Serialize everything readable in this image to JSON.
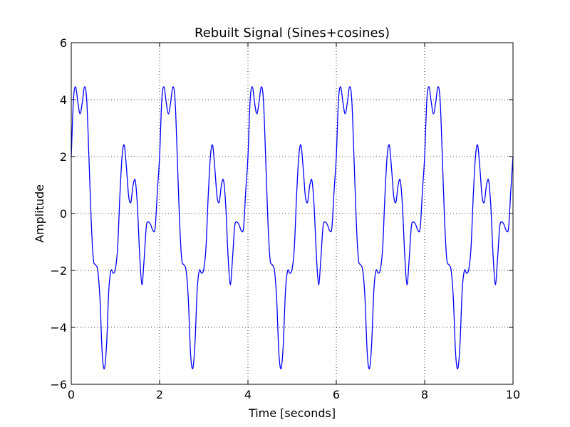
{
  "chart_data": {
    "type": "line",
    "title": "Rebuilt Signal (Sines+cosines)",
    "xlabel": "Time [seconds]",
    "ylabel": "Amplitude",
    "xlim": [
      0,
      10
    ],
    "ylim": [
      -6,
      6
    ],
    "xticks": [
      0,
      2,
      4,
      6,
      8,
      10
    ],
    "yticks": [
      -6,
      -4,
      -2,
      0,
      2,
      4,
      6
    ],
    "xtick_labels": [
      "0",
      "2",
      "4",
      "6",
      "8",
      "10"
    ],
    "ytick_labels": [
      "−6",
      "−4",
      "−2",
      "0",
      "2",
      "4",
      "6"
    ],
    "grid": true,
    "period_seconds": 2,
    "series": [
      {
        "color": "#0000ff",
        "x": [
          0,
          0.05,
          0.1,
          0.15,
          0.2,
          0.25,
          0.3,
          0.35,
          0.4,
          0.45,
          0.5,
          0.55,
          0.6,
          0.65,
          0.7,
          0.75,
          0.8,
          0.85,
          0.9,
          0.95,
          1.0,
          1.05,
          1.1,
          1.15,
          1.2,
          1.25,
          1.3,
          1.35,
          1.4,
          1.45,
          1.5,
          1.55,
          1.6,
          1.65,
          1.7,
          1.75,
          1.8,
          1.85,
          1.9,
          1.95,
          2.0,
          2.05,
          2.1,
          2.15,
          2.2,
          2.25,
          2.3,
          2.35,
          2.4,
          2.45,
          2.5,
          2.55,
          2.6,
          2.65,
          2.7,
          2.75,
          2.8,
          2.85,
          2.9,
          2.95,
          3.0,
          3.05,
          3.1,
          3.15,
          3.2,
          3.25,
          3.3,
          3.35,
          3.4,
          3.45,
          3.5,
          3.55,
          3.6,
          3.65,
          3.7,
          3.75,
          3.8,
          3.85,
          3.9,
          3.95,
          4.0,
          4.05,
          4.1,
          4.15,
          4.2,
          4.25,
          4.3,
          4.35,
          4.4,
          4.45,
          4.5,
          4.55,
          4.6,
          4.65,
          4.7,
          4.75,
          4.8,
          4.85,
          4.9,
          4.95,
          5.0,
          5.05,
          5.1,
          5.15,
          5.2,
          5.25,
          5.3,
          5.35,
          5.4,
          5.45,
          5.5,
          5.55,
          5.6,
          5.65,
          5.7,
          5.75,
          5.8,
          5.85,
          5.9,
          5.95,
          6.0,
          6.05,
          6.1,
          6.15,
          6.2,
          6.25,
          6.3,
          6.35,
          6.4,
          6.45,
          6.5,
          6.55,
          6.6,
          6.65,
          6.7,
          6.75,
          6.8,
          6.85,
          6.9,
          6.95,
          7.0,
          7.05,
          7.1,
          7.15,
          7.2,
          7.25,
          7.3,
          7.35,
          7.4,
          7.45,
          7.5,
          7.55,
          7.6,
          7.65,
          7.7,
          7.75,
          7.8,
          7.85,
          7.9,
          7.95,
          8.0,
          8.05,
          8.1,
          8.15,
          8.2,
          8.25,
          8.3,
          8.35,
          8.4,
          8.45,
          8.5,
          8.55,
          8.6,
          8.65,
          8.7,
          8.75,
          8.8,
          8.85,
          8.9,
          8.95,
          9.0,
          9.05,
          9.1,
          9.15,
          9.2,
          9.25,
          9.3,
          9.35,
          9.4,
          9.45,
          9.5,
          9.55,
          9.6,
          9.65,
          9.7,
          9.75,
          9.8,
          9.85,
          9.9,
          9.95,
          10.0
        ],
        "y": [
          2.0,
          4.0,
          4.45,
          3.9,
          3.5,
          3.9,
          4.45,
          4.0,
          2.0,
          -0.2,
          -1.6,
          -1.8,
          -2.0,
          -3.0,
          -4.9,
          -5.45,
          -4.6,
          -2.7,
          -2.0,
          -2.1,
          -1.95,
          -1.2,
          0.6,
          2.0,
          2.4,
          1.6,
          0.6,
          0.4,
          1.0,
          1.15,
          0.2,
          -1.5,
          -2.5,
          -1.6,
          -0.45,
          -0.3,
          -0.4,
          -0.6,
          -0.5,
          0.8,
          2.0,
          4.0,
          4.45,
          3.9,
          3.5,
          3.9,
          4.45,
          4.0,
          2.0,
          -0.2,
          -1.6,
          -1.8,
          -2.0,
          -3.0,
          -4.9,
          -5.45,
          -4.6,
          -2.7,
          -2.0,
          -2.1,
          -1.95,
          -1.2,
          0.6,
          2.0,
          2.4,
          1.6,
          0.6,
          0.4,
          1.0,
          1.15,
          0.2,
          -1.5,
          -2.5,
          -1.6,
          -0.45,
          -0.3,
          -0.4,
          -0.6,
          -0.5,
          0.8,
          2.0,
          4.0,
          4.45,
          3.9,
          3.5,
          3.9,
          4.45,
          4.0,
          2.0,
          -0.2,
          -1.6,
          -1.8,
          -2.0,
          -3.0,
          -4.9,
          -5.45,
          -4.6,
          -2.7,
          -2.0,
          -2.1,
          -1.95,
          -1.2,
          0.6,
          2.0,
          2.4,
          1.6,
          0.6,
          0.4,
          1.0,
          1.15,
          0.2,
          -1.5,
          -2.5,
          -1.6,
          -0.45,
          -0.3,
          -0.4,
          -0.6,
          -0.5,
          0.8,
          2.0,
          4.0,
          4.45,
          3.9,
          3.5,
          3.9,
          4.45,
          4.0,
          2.0,
          -0.2,
          -1.6,
          -1.8,
          -2.0,
          -3.0,
          -4.9,
          -5.45,
          -4.6,
          -2.7,
          -2.0,
          -2.1,
          -1.95,
          -1.2,
          0.6,
          2.0,
          2.4,
          1.6,
          0.6,
          0.4,
          1.0,
          1.15,
          0.2,
          -1.5,
          -2.5,
          -1.6,
          -0.45,
          -0.3,
          -0.4,
          -0.6,
          -0.5,
          0.8,
          2.0,
          4.0,
          4.45,
          3.9,
          3.5,
          3.9,
          4.45,
          4.0,
          2.0,
          -0.2,
          -1.6,
          -1.8,
          -2.0,
          -3.0,
          -4.9,
          -5.45,
          -4.6,
          -2.7,
          -2.0,
          -2.1,
          -1.95,
          -1.2,
          0.6,
          2.0,
          2.4,
          1.6,
          0.6,
          0.4,
          1.0,
          1.15,
          0.2,
          -1.5,
          -2.5,
          -1.6,
          -0.45,
          -0.3,
          -0.4,
          -0.6,
          -0.5,
          0.8,
          2.0
        ]
      }
    ]
  }
}
